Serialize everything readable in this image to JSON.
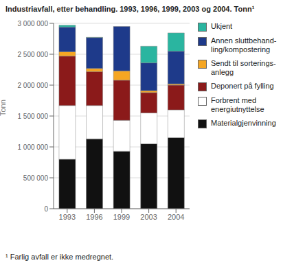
{
  "chart_data": {
    "type": "bar",
    "title": "Industriavfall, etter behandling. 1993, 1996, 1999, 2003 og 2004. Tonn¹",
    "ylabel": "Tonn",
    "annotations": [
      "¹ Farlig avfall er ikke medregnet."
    ],
    "categories": [
      "1993",
      "1996",
      "1999",
      "2003",
      "2004"
    ],
    "series": [
      {
        "name": "Materialgjenvinning",
        "color": "#111111",
        "values": [
          800000,
          1130000,
          930000,
          1050000,
          1150000
        ]
      },
      {
        "name": "Forbrent med\nenergiutnyttelse",
        "color": "#ffffff",
        "values": [
          870000,
          540000,
          500000,
          500000,
          450000
        ]
      },
      {
        "name": "Deponert på fylling",
        "color": "#8b1a1a",
        "values": [
          800000,
          550000,
          650000,
          330000,
          400000
        ]
      },
      {
        "name": "Sendt til sorterings-\nanlegg",
        "color": "#f5a623",
        "values": [
          70000,
          50000,
          150000,
          30000,
          20000
        ]
      },
      {
        "name": "Annen sluttbehand-\nling/kompostering",
        "color": "#1e3a8a",
        "values": [
          400000,
          500000,
          720000,
          450000,
          530000
        ]
      },
      {
        "name": "Ukjent",
        "color": "#2ab5a0",
        "values": [
          30000,
          5000,
          0,
          270000,
          295000
        ]
      }
    ],
    "stacked": true,
    "ylim": [
      0,
      3000000
    ],
    "yticks": [
      0,
      {
        "value": 500000,
        "label": "500 000"
      },
      {
        "value": 1000000,
        "label": "1 000 000"
      },
      {
        "value": 1500000,
        "label": "1 500 000"
      },
      {
        "value": 2000000,
        "label": "2 000 000"
      },
      {
        "value": 2500000,
        "label": "2 500 000"
      },
      {
        "value": 3000000,
        "label": "3 000 000"
      }
    ],
    "grid": true,
    "legend": "right"
  }
}
